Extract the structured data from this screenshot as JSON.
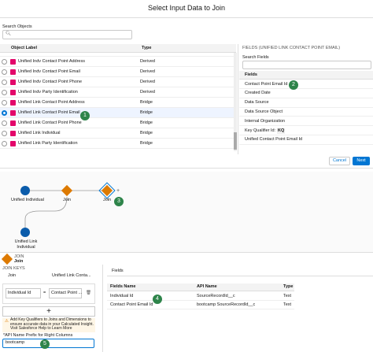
{
  "modal": {
    "title": "Select Input Data to Join",
    "search_label": "Search Objects",
    "table_headers": [
      "Object Label",
      "Type"
    ],
    "rows": [
      {
        "label": "Unified Indv Contact Point Address",
        "type": "Derived"
      },
      {
        "label": "Unified Indv Contact Point Email",
        "type": "Derived"
      },
      {
        "label": "Unified Indv Contact Point Phone",
        "type": "Derived"
      },
      {
        "label": "Unified Indv Party Identification",
        "type": "Derived"
      },
      {
        "label": "Unified Link Contact Point Address",
        "type": "Bridge"
      },
      {
        "label": "Unified Link Contact Point Email",
        "type": "Bridge"
      },
      {
        "label": "Unified Link Contact Point Phone",
        "type": "Bridge"
      },
      {
        "label": "Unified Link Individual",
        "type": "Bridge"
      },
      {
        "label": "Unified Link Party Identification",
        "type": "Bridge"
      }
    ],
    "fields_title": "FIELDS (UNIFIED LINK CONTACT POINT EMAIL)",
    "search_fields_label": "Search Fields",
    "fields_header": "Fields",
    "fields": [
      "Contact Point Email Id",
      "Created Date",
      "Data Source",
      "Data Source Object",
      "Internal Organization",
      "Key Qualifier Id:",
      "Unified Contact Point Email Id"
    ],
    "key_qualifier": "KQ",
    "buttons": [
      "Cancel",
      "Next"
    ]
  },
  "canvas": {
    "nodes": [
      "Unified Individual",
      "Join",
      "Join",
      "Unified Link Individual"
    ]
  },
  "panel": {
    "kicker": "JOIN",
    "name": "Join",
    "join_keys_label": "JOIN KEYS",
    "key_headers": [
      "Join",
      "Unified Link Conta..."
    ],
    "key": {
      "left": "Individual Id",
      "op": "=",
      "right": "Contact Point ..."
    },
    "warning": "Add Key Qualifiers to Joins and Dimensions to ensure accurate data in your Calculated Insight. Visit Salesforce Help to Learn More",
    "prefix_label": "*API Name Prefix for Right Columns",
    "prefix_value": "bootcamp",
    "tab": "Fields",
    "field_headers": [
      "Fields Name",
      "API Name",
      "Type"
    ],
    "field_rows": [
      [
        "Individual Id",
        "SourceRecordId__c",
        "Text"
      ],
      [
        "Contact Point Email Id",
        "bootcamp SourceRecordId__c",
        "Text"
      ]
    ]
  },
  "badges": [
    "1",
    "2",
    "3",
    "4",
    "5"
  ]
}
